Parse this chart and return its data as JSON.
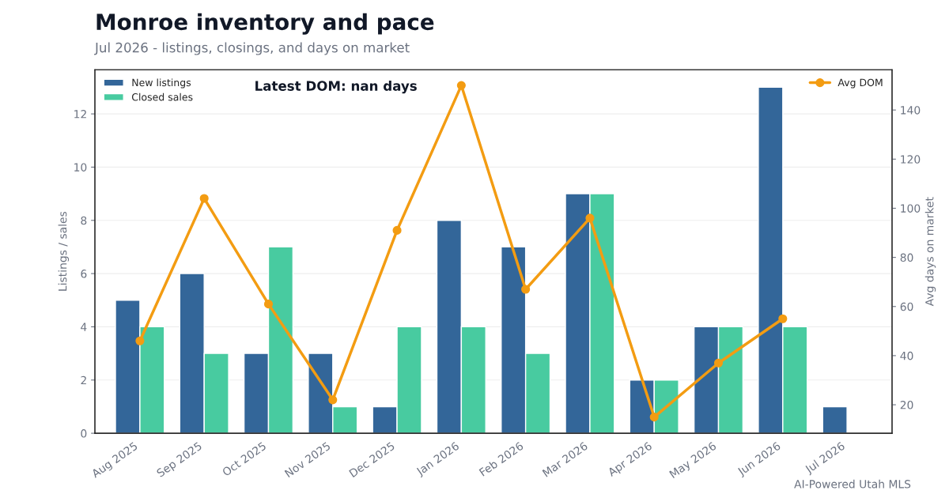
{
  "chart_data": {
    "type": "bar",
    "title": "Monroe inventory and pace",
    "subtitle": "Jul 2026 - listings, closings, and days on market",
    "ylabel": "Listings / sales",
    "y2label": "Avg days on market",
    "categories": [
      "Aug 2025",
      "Sep 2025",
      "Oct 2025",
      "Nov 2025",
      "Dec 2025",
      "Jan 2026",
      "Feb 2026",
      "Mar 2026",
      "Apr 2026",
      "May 2026",
      "Jun 2026",
      "Jul 2026"
    ],
    "series": [
      {
        "name": "New listings",
        "color": "#336699",
        "values": [
          5,
          6,
          3,
          3,
          1,
          8,
          7,
          9,
          2,
          4,
          13,
          1
        ]
      },
      {
        "name": "Closed sales",
        "color": "#48cba0",
        "values": [
          4,
          3,
          7,
          1,
          4,
          4,
          3,
          9,
          2,
          4,
          4,
          null
        ]
      },
      {
        "name": "Avg DOM",
        "type": "line",
        "axis": "y2",
        "color": "#f39c12",
        "marker": "circle",
        "values": [
          46,
          104,
          61,
          22,
          91,
          150,
          67,
          96,
          15,
          37,
          55,
          null
        ]
      }
    ],
    "ylim": [
      0,
      13.66
    ],
    "yticks": [
      0,
      2,
      4,
      6,
      8,
      10,
      12
    ],
    "y2lim": [
      8.4,
      156.4
    ],
    "y2ticks": [
      20,
      40,
      60,
      80,
      100,
      120,
      140
    ],
    "grid": "y",
    "legend": "top left",
    "annotations": [
      "Latest DOM: nan days",
      "AI-Powered Utah MLS"
    ]
  }
}
